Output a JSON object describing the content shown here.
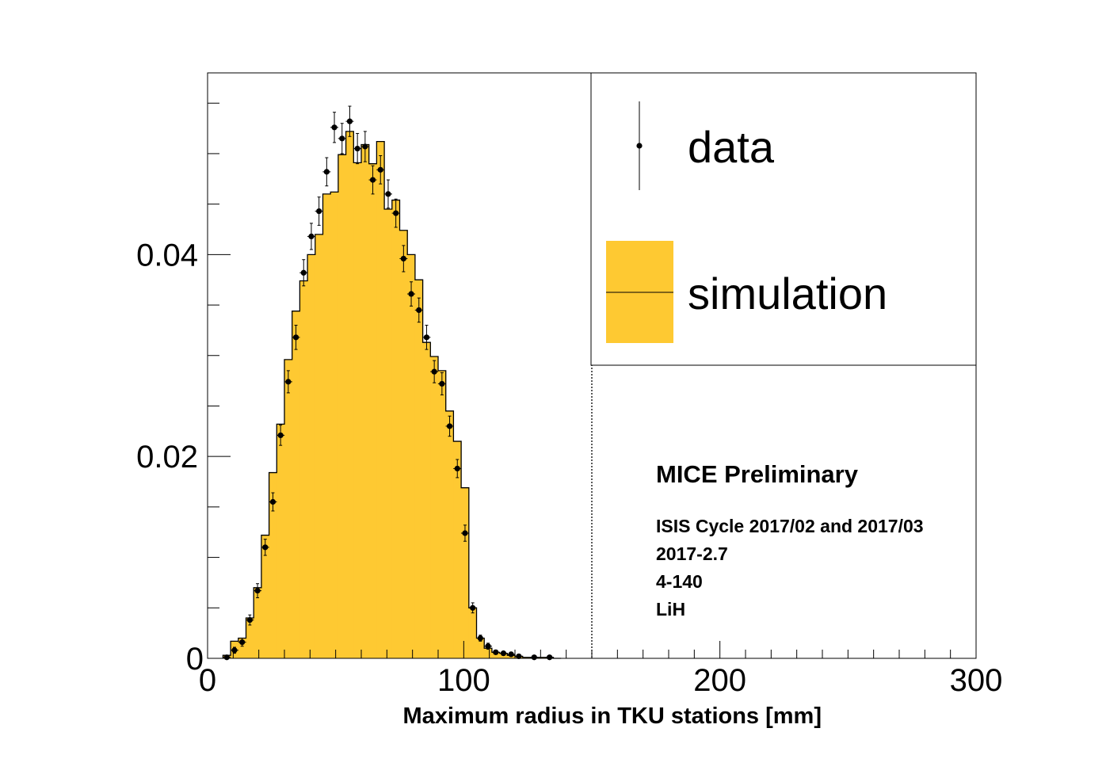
{
  "chart_data": {
    "type": "bar",
    "title": "",
    "xlabel": "Maximum radius in TKU stations [mm]",
    "ylabel": "",
    "xlim": [
      0,
      300
    ],
    "ylim": [
      0,
      0.058
    ],
    "x_ticks": [
      "0",
      "100",
      "200",
      "300"
    ],
    "y_ticks": [
      "0",
      "0.02",
      "0.04"
    ],
    "cut_line_x": 150,
    "grid": false,
    "legend_position": "top-right",
    "colors": {
      "simulation_fill": "#fec932",
      "outline": "#000000",
      "data_marker": "#000000"
    },
    "series": [
      {
        "name": "simulation",
        "type": "histogram",
        "bin_edges": [
          6,
          9,
          12,
          15,
          18,
          21,
          24,
          27,
          30,
          33,
          36,
          39,
          42,
          45,
          48,
          51,
          54,
          57,
          60,
          63,
          66,
          69,
          72,
          75,
          78,
          81,
          84,
          87,
          90,
          93,
          96,
          99,
          102,
          105,
          108,
          111,
          114,
          117,
          120,
          123,
          126,
          129,
          132,
          135,
          138
        ],
        "values": [
          0.0003,
          0.0017,
          0.002,
          0.004,
          0.007,
          0.0122,
          0.0184,
          0.0232,
          0.0296,
          0.0344,
          0.0374,
          0.04,
          0.042,
          0.046,
          0.0462,
          0.0499,
          0.0522,
          0.0491,
          0.0509,
          0.049,
          0.0512,
          0.0445,
          0.0454,
          0.0424,
          0.04,
          0.0375,
          0.0313,
          0.0299,
          0.0285,
          0.0245,
          0.0215,
          0.0169,
          0.005,
          0.002,
          0.001,
          0.0006,
          0.0005,
          0.0003,
          0.0002,
          0.0001,
          0.0001,
          0.0001,
          0.0001,
          0.0
        ]
      },
      {
        "name": "data",
        "type": "points",
        "x": [
          7.5,
          10.5,
          13.5,
          16.5,
          19.5,
          22.5,
          25.5,
          28.5,
          31.5,
          34.5,
          37.5,
          40.5,
          43.5,
          46.5,
          49.5,
          52.5,
          55.5,
          58.5,
          61.5,
          64.5,
          67.5,
          70.5,
          73.5,
          76.5,
          79.5,
          82.5,
          85.5,
          88.5,
          91.5,
          94.5,
          97.5,
          100.5,
          103.5,
          106.5,
          109.5,
          112.5,
          115.5,
          118.5,
          121.5,
          127.5,
          133.5
        ],
        "values": [
          0.0001,
          0.0008,
          0.0016,
          0.0038,
          0.0067,
          0.011,
          0.0155,
          0.0221,
          0.0274,
          0.0318,
          0.0382,
          0.0418,
          0.0443,
          0.0482,
          0.0526,
          0.0515,
          0.0532,
          0.0505,
          0.0507,
          0.0474,
          0.0484,
          0.046,
          0.0441,
          0.0396,
          0.0361,
          0.0345,
          0.0318,
          0.0284,
          0.0272,
          0.023,
          0.0188,
          0.0124,
          0.005,
          0.002,
          0.0012,
          0.0006,
          0.0005,
          0.0004,
          0.0002,
          0.0001,
          0.0001
        ],
        "errors": [
          0.0001,
          0.0003,
          0.0004,
          0.0005,
          0.0007,
          0.0008,
          0.0009,
          0.001,
          0.0011,
          0.0012,
          0.0013,
          0.0013,
          0.0014,
          0.0014,
          0.0015,
          0.0015,
          0.0015,
          0.0015,
          0.0015,
          0.0014,
          0.0014,
          0.0014,
          0.0014,
          0.0013,
          0.0012,
          0.0012,
          0.0012,
          0.0011,
          0.0011,
          0.001,
          0.0009,
          0.0008,
          0.0005,
          0.0003,
          0.0003,
          0.0002,
          0.0002,
          0.0002,
          0.0001,
          0.0001,
          0.0001
        ]
      }
    ],
    "annotations": {
      "title": "MICE Preliminary",
      "lines": [
        "ISIS Cycle 2017/02 and 2017/03",
        "2017-2.7",
        "4-140",
        "LiH"
      ]
    }
  }
}
